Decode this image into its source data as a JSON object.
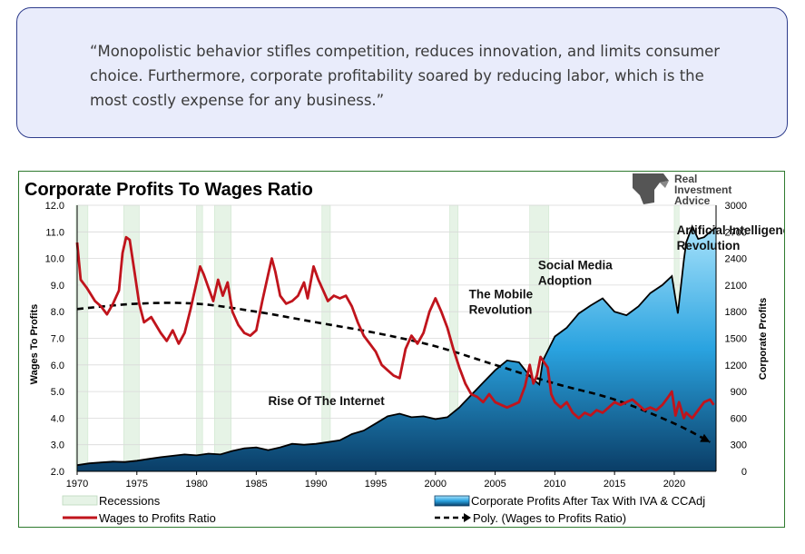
{
  "quote": {
    "text": "“Monopolistic behavior stifles competition, reduces innovation, and limits consumer choice. Furthermore, corporate profitability soared by reducing labor, which is the most costly expense for any business.”"
  },
  "logo": {
    "line1": "Real",
    "line2": "Investment",
    "line3": "Advice"
  },
  "colors": {
    "quote_border": "#2f3d8c",
    "quote_bg": "#e9ecfb",
    "wages_line": "#c0141c",
    "profits_area_top": "#a7e2fb",
    "profits_area_bottom": "#0a3d66",
    "recession_fill": "#e6f3e6",
    "poly_line": "#000000"
  },
  "chart_data": {
    "type": "line",
    "title": "Corporate Profits To Wages Ratio",
    "ylabel_left": "Wages To Profits",
    "ylabel_right": "Corporate Profits",
    "ylim_left": [
      2.0,
      12.0
    ],
    "ylim_right": [
      0,
      3000
    ],
    "xlim": [
      1970,
      2023.5
    ],
    "x_ticks": [
      1970,
      1975,
      1980,
      1985,
      1990,
      1995,
      2000,
      2005,
      2010,
      2015,
      2020
    ],
    "y_ticks_left": [
      "2.0",
      "3.0",
      "4.0",
      "5.0",
      "6.0",
      "7.0",
      "8.0",
      "9.0",
      "10.0",
      "11.0",
      "12.0"
    ],
    "y_ticks_right": [
      "0",
      "300",
      "600",
      "900",
      "1200",
      "1500",
      "1800",
      "2100",
      "2400",
      "2700",
      "3000"
    ],
    "grid": true,
    "recessions": [
      [
        1969.9,
        1970.9
      ],
      [
        1973.9,
        1975.2
      ],
      [
        1980.0,
        1980.5
      ],
      [
        1981.5,
        1982.9
      ],
      [
        1990.5,
        1991.2
      ],
      [
        2001.2,
        2001.9
      ],
      [
        2007.9,
        2009.5
      ],
      [
        2020.0,
        2020.4
      ]
    ],
    "series": [
      {
        "name": "Corporate Profits After Tax With IVA & CCAdj",
        "axis": "right",
        "type": "area",
        "points": [
          [
            1970,
            70
          ],
          [
            1971,
            90
          ],
          [
            1972,
            100
          ],
          [
            1973,
            110
          ],
          [
            1974,
            105
          ],
          [
            1975,
            120
          ],
          [
            1976,
            140
          ],
          [
            1977,
            160
          ],
          [
            1978,
            175
          ],
          [
            1979,
            190
          ],
          [
            1980,
            180
          ],
          [
            1981,
            200
          ],
          [
            1982,
            190
          ],
          [
            1983,
            230
          ],
          [
            1984,
            260
          ],
          [
            1985,
            270
          ],
          [
            1986,
            240
          ],
          [
            1987,
            270
          ],
          [
            1988,
            310
          ],
          [
            1989,
            300
          ],
          [
            1990,
            310
          ],
          [
            1991,
            330
          ],
          [
            1992,
            350
          ],
          [
            1993,
            420
          ],
          [
            1994,
            460
          ],
          [
            1995,
            540
          ],
          [
            1996,
            620
          ],
          [
            1997,
            650
          ],
          [
            1998,
            610
          ],
          [
            1999,
            620
          ],
          [
            2000,
            590
          ],
          [
            2001,
            610
          ],
          [
            2002,
            720
          ],
          [
            2003,
            860
          ],
          [
            2004,
            1000
          ],
          [
            2005,
            1140
          ],
          [
            2006,
            1250
          ],
          [
            2007,
            1230
          ],
          [
            2008,
            1060
          ],
          [
            2008.7,
            980
          ],
          [
            2009,
            1250
          ],
          [
            2010,
            1520
          ],
          [
            2011,
            1620
          ],
          [
            2012,
            1780
          ],
          [
            2013,
            1870
          ],
          [
            2014,
            1950
          ],
          [
            2015,
            1800
          ],
          [
            2016,
            1760
          ],
          [
            2017,
            1860
          ],
          [
            2018,
            2010
          ],
          [
            2019,
            2100
          ],
          [
            2019.8,
            2200
          ],
          [
            2020.3,
            1780
          ],
          [
            2020.8,
            2380
          ],
          [
            2021,
            2580
          ],
          [
            2021.5,
            2760
          ],
          [
            2022,
            2620
          ],
          [
            2022.5,
            2640
          ],
          [
            2023,
            2700
          ],
          [
            2023.5,
            2750
          ]
        ]
      },
      {
        "name": "Wages to Profits Ratio",
        "axis": "left",
        "type": "line",
        "points": [
          [
            1970,
            10.6
          ],
          [
            1970.3,
            9.2
          ],
          [
            1970.8,
            8.9
          ],
          [
            1971.5,
            8.4
          ],
          [
            1972,
            8.2
          ],
          [
            1972.5,
            7.9
          ],
          [
            1973,
            8.3
          ],
          [
            1973.5,
            8.8
          ],
          [
            1973.8,
            10.2
          ],
          [
            1974.1,
            10.8
          ],
          [
            1974.4,
            10.7
          ],
          [
            1974.8,
            9.5
          ],
          [
            1975.2,
            8.3
          ],
          [
            1975.6,
            7.6
          ],
          [
            1976.2,
            7.8
          ],
          [
            1977,
            7.2
          ],
          [
            1977.5,
            6.9
          ],
          [
            1978,
            7.3
          ],
          [
            1978.5,
            6.8
          ],
          [
            1979,
            7.2
          ],
          [
            1979.5,
            8.1
          ],
          [
            1980,
            9.1
          ],
          [
            1980.3,
            9.7
          ],
          [
            1980.6,
            9.4
          ],
          [
            1981,
            8.9
          ],
          [
            1981.4,
            8.4
          ],
          [
            1981.8,
            9.2
          ],
          [
            1982.2,
            8.6
          ],
          [
            1982.6,
            9.1
          ],
          [
            1983,
            8.0
          ],
          [
            1983.5,
            7.5
          ],
          [
            1984,
            7.2
          ],
          [
            1984.5,
            7.1
          ],
          [
            1985,
            7.3
          ],
          [
            1985.5,
            8.4
          ],
          [
            1986,
            9.4
          ],
          [
            1986.3,
            10.0
          ],
          [
            1986.6,
            9.5
          ],
          [
            1987,
            8.6
          ],
          [
            1987.5,
            8.3
          ],
          [
            1988,
            8.4
          ],
          [
            1988.5,
            8.6
          ],
          [
            1989,
            9.1
          ],
          [
            1989.3,
            8.5
          ],
          [
            1989.8,
            9.7
          ],
          [
            1990.2,
            9.2
          ],
          [
            1990.6,
            8.8
          ],
          [
            1991,
            8.4
          ],
          [
            1991.5,
            8.6
          ],
          [
            1992,
            8.5
          ],
          [
            1992.5,
            8.6
          ],
          [
            1993,
            8.2
          ],
          [
            1993.5,
            7.6
          ],
          [
            1994,
            7.1
          ],
          [
            1994.5,
            6.8
          ],
          [
            1995,
            6.5
          ],
          [
            1995.5,
            6.0
          ],
          [
            1996,
            5.8
          ],
          [
            1996.5,
            5.6
          ],
          [
            1997,
            5.5
          ],
          [
            1997.5,
            6.6
          ],
          [
            1998,
            7.1
          ],
          [
            1998.5,
            6.8
          ],
          [
            1999,
            7.2
          ],
          [
            1999.5,
            8.0
          ],
          [
            2000,
            8.5
          ],
          [
            2000.5,
            8.0
          ],
          [
            2001,
            7.4
          ],
          [
            2001.5,
            6.6
          ],
          [
            2002,
            5.9
          ],
          [
            2002.5,
            5.3
          ],
          [
            2003,
            4.9
          ],
          [
            2003.5,
            4.8
          ],
          [
            2004,
            4.6
          ],
          [
            2004.5,
            4.9
          ],
          [
            2005,
            4.6
          ],
          [
            2005.5,
            4.5
          ],
          [
            2006,
            4.4
          ],
          [
            2006.5,
            4.5
          ],
          [
            2007,
            4.6
          ],
          [
            2007.5,
            5.2
          ],
          [
            2007.9,
            6.0
          ],
          [
            2008.2,
            5.3
          ],
          [
            2008.5,
            5.6
          ],
          [
            2008.8,
            6.3
          ],
          [
            2009.1,
            6.1
          ],
          [
            2009.4,
            5.9
          ],
          [
            2009.7,
            4.9
          ],
          [
            2010,
            4.6
          ],
          [
            2010.5,
            4.4
          ],
          [
            2011,
            4.6
          ],
          [
            2011.5,
            4.2
          ],
          [
            2012,
            4.0
          ],
          [
            2012.5,
            4.2
          ],
          [
            2013,
            4.1
          ],
          [
            2013.5,
            4.3
          ],
          [
            2014,
            4.2
          ],
          [
            2014.5,
            4.4
          ],
          [
            2015,
            4.6
          ],
          [
            2015.5,
            4.5
          ],
          [
            2016,
            4.6
          ],
          [
            2016.5,
            4.7
          ],
          [
            2017,
            4.5
          ],
          [
            2017.5,
            4.3
          ],
          [
            2018,
            4.4
          ],
          [
            2018.5,
            4.3
          ],
          [
            2019,
            4.5
          ],
          [
            2019.5,
            4.8
          ],
          [
            2019.8,
            5.0
          ],
          [
            2020.1,
            4.1
          ],
          [
            2020.4,
            4.6
          ],
          [
            2020.8,
            4.0
          ],
          [
            2021,
            4.2
          ],
          [
            2021.5,
            4.0
          ],
          [
            2022,
            4.3
          ],
          [
            2022.5,
            4.6
          ],
          [
            2023,
            4.7
          ],
          [
            2023.3,
            4.5
          ]
        ]
      },
      {
        "name": "Poly. (Wages to Profits Ratio)",
        "axis": "left",
        "type": "dashed-line",
        "points": [
          [
            1970,
            8.1
          ],
          [
            1975,
            8.3
          ],
          [
            1980,
            8.3
          ],
          [
            1985,
            8.0
          ],
          [
            1990,
            7.6
          ],
          [
            1995,
            7.2
          ],
          [
            2000,
            6.7
          ],
          [
            2005,
            6.0
          ],
          [
            2010,
            5.3
          ],
          [
            2015,
            4.7
          ],
          [
            2020,
            3.8
          ],
          [
            2023,
            3.1
          ]
        ]
      }
    ],
    "annotations": [
      {
        "text": "Rise Of The Internet",
        "lines": [
          "Rise Of The Internet"
        ]
      },
      {
        "text": "The Mobile Revolution",
        "lines": [
          "The Mobile",
          "Revolution"
        ]
      },
      {
        "text": "Social Media Adoption",
        "lines": [
          "Social Media",
          "Adoption"
        ]
      },
      {
        "text": "Artificial Intelligence Revolution",
        "lines": [
          "Artificial Intelligence",
          "Revolution"
        ]
      }
    ],
    "legend": [
      {
        "label": "Recessions",
        "kind": "recession"
      },
      {
        "label": "Corporate Profits After Tax With IVA & CCAdj",
        "kind": "area"
      },
      {
        "label": "Wages to Profits Ratio",
        "kind": "line"
      },
      {
        "label": "Poly. (Wages to Profits Ratio)",
        "kind": "dashed"
      }
    ],
    "legend_position": "bottom"
  }
}
